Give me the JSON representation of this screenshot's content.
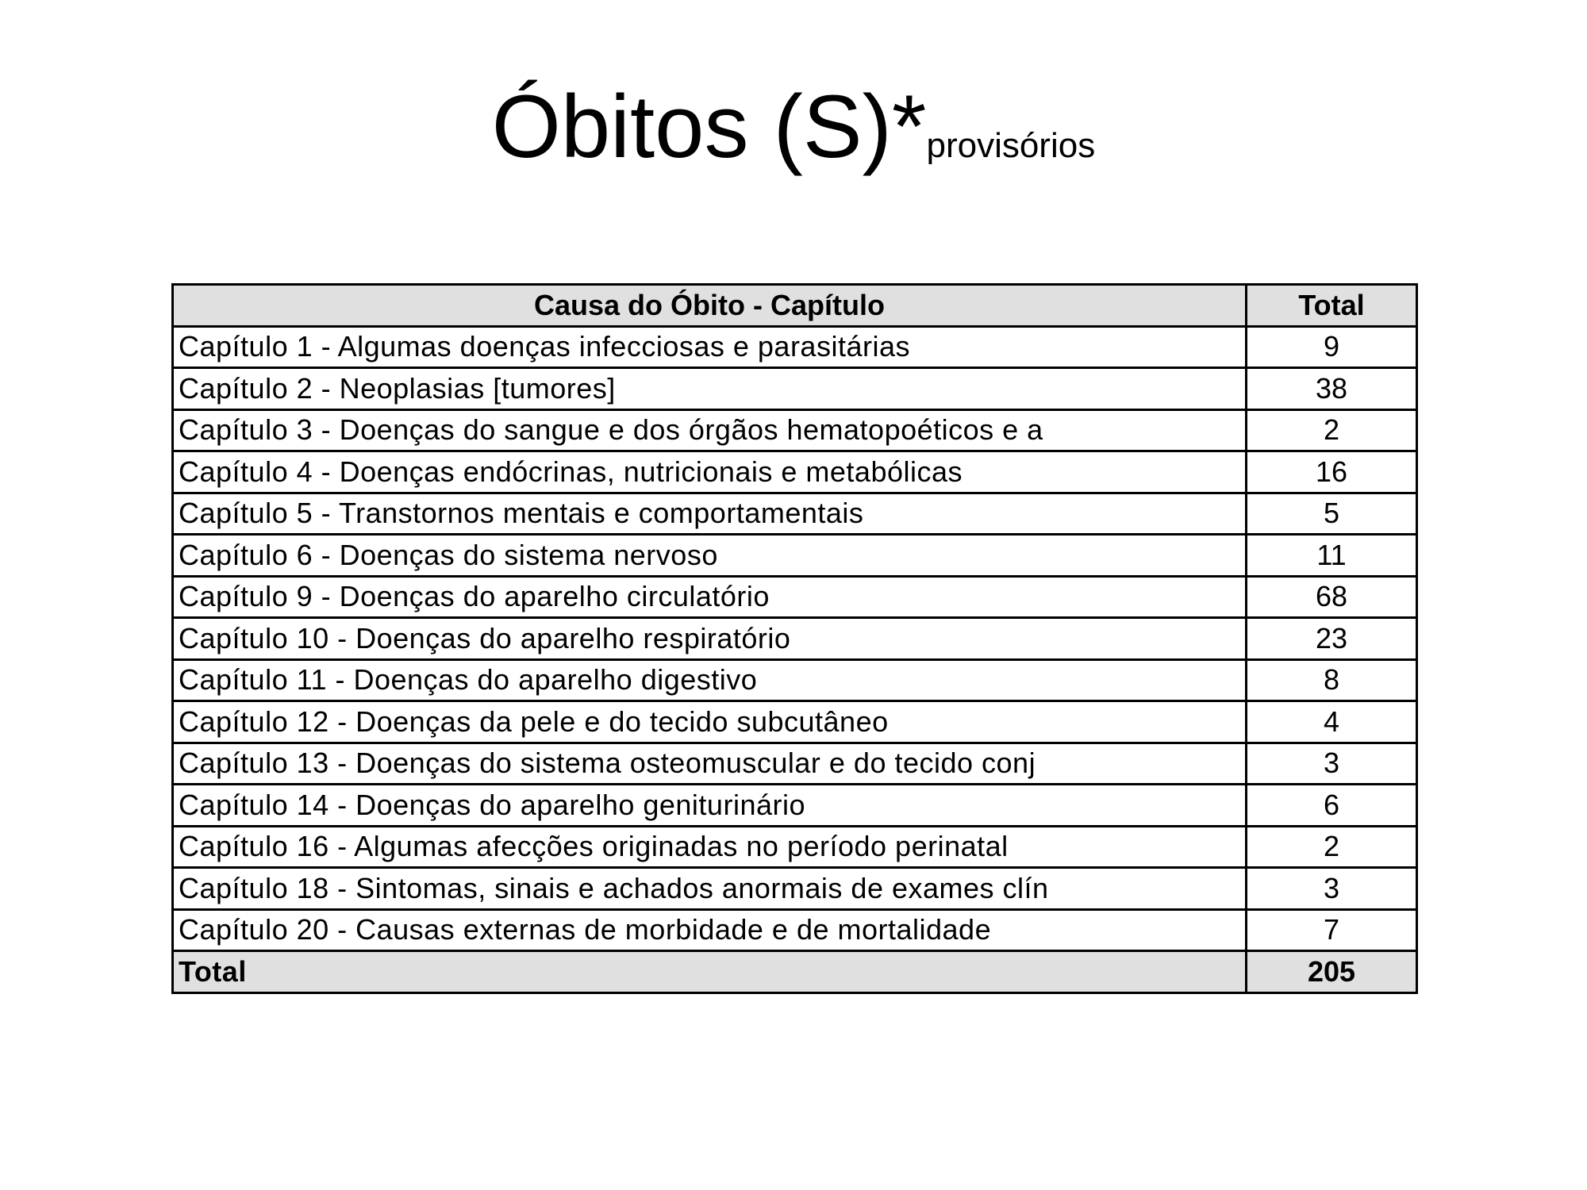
{
  "title": {
    "main": "Óbitos (S)*",
    "subscript": "provisórios"
  },
  "table": {
    "headers": [
      "Causa do Óbito - Capítulo",
      "Total"
    ],
    "rows": [
      {
        "cause": "Capítulo  1 - Algumas doenças infecciosas e parasitárias",
        "total": "9"
      },
      {
        "cause": "Capítulo  2 - Neoplasias [tumores]",
        "total": "38"
      },
      {
        "cause": "Capítulo  3 - Doenças do sangue e dos órgãos hematopoéticos e a",
        "total": "2"
      },
      {
        "cause": "Capítulo  4 - Doenças endócrinas, nutricionais e metabólicas",
        "total": "16"
      },
      {
        "cause": "Capítulo  5 - Transtornos mentais e comportamentais",
        "total": "5"
      },
      {
        "cause": "Capítulo  6 - Doenças do sistema nervoso",
        "total": "11"
      },
      {
        "cause": "Capítulo  9 - Doenças do aparelho circulatório",
        "total": "68"
      },
      {
        "cause": "Capítulo 10 - Doenças do aparelho respiratório",
        "total": "23"
      },
      {
        "cause": "Capítulo 11 - Doenças do aparelho digestivo",
        "total": "8"
      },
      {
        "cause": "Capítulo 12 - Doenças da pele e do tecido subcutâneo",
        "total": "4"
      },
      {
        "cause": "Capítulo 13 - Doenças do sistema osteomuscular e do tecido conj",
        "total": "3"
      },
      {
        "cause": "Capítulo 14 - Doenças do aparelho geniturinário",
        "total": "6"
      },
      {
        "cause": "Capítulo 16 - Algumas afecções originadas no período perinatal",
        "total": "2"
      },
      {
        "cause": "Capítulo 18 - Sintomas, sinais e achados anormais de exames clín",
        "total": "3"
      },
      {
        "cause": "Capítulo 20 - Causas externas de morbidade e de mortalidade",
        "total": "7"
      }
    ],
    "footer": {
      "label": "Total",
      "total": "205"
    }
  },
  "colors": {
    "header_bg": "#e0e0e0",
    "border": "#000000"
  }
}
